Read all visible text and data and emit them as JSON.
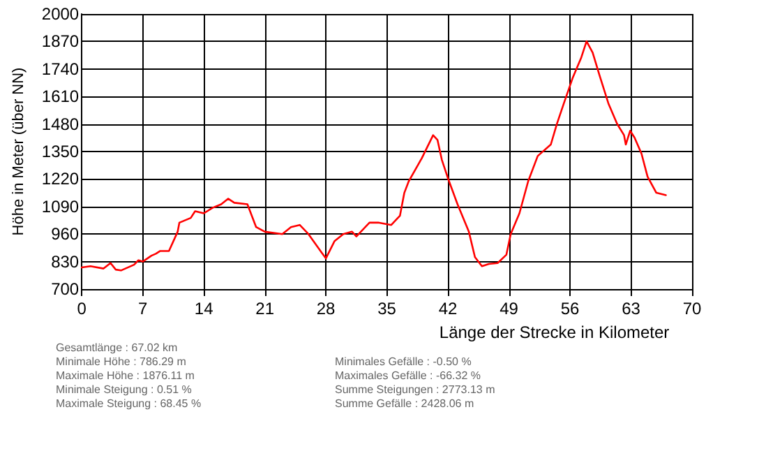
{
  "chart_data": {
    "type": "line",
    "xlabel": "Länge der Strecke in Kilometer",
    "ylabel": "Höhe in Meter (über NN)",
    "xlim": [
      0,
      70
    ],
    "xticks": [
      0,
      7,
      14,
      21,
      28,
      35,
      42,
      49,
      56,
      63,
      70
    ],
    "ylim": [
      700,
      2000
    ],
    "yticks": [
      700,
      830,
      960,
      1090,
      1220,
      1350,
      1480,
      1610,
      1740,
      1870,
      2000
    ],
    "grid": true,
    "marker": "none",
    "line_style": "solid",
    "series": [
      {
        "color": "#ff0000",
        "x": [
          0,
          1,
          2.5,
          3.3,
          3.9,
          4.5,
          6,
          6.5,
          7,
          8,
          8.5,
          9,
          10,
          11,
          11.2,
          12.5,
          13,
          14,
          15,
          16,
          16.8,
          17.5,
          19,
          20,
          21,
          23,
          24,
          25,
          26,
          27.5,
          28,
          29,
          30,
          31,
          31.5,
          33,
          34,
          35.5,
          36.5,
          37,
          37.5,
          39,
          40.3,
          40.8,
          41.3,
          42,
          43.1,
          44.4,
          45.1,
          45.9,
          46.7,
          47.7,
          48.7,
          49.2,
          50.2,
          51.2,
          52.3,
          53.8,
          54.5,
          55.3,
          56.3,
          57.3,
          57.9,
          58.6,
          59.4,
          60.4,
          61.4,
          62.2,
          62.4,
          62.9,
          63.4,
          64.2,
          64.9,
          65.9,
          67
        ],
        "values": [
          802,
          808,
          797,
          823,
          792,
          788,
          815,
          836,
          830,
          858,
          867,
          880,
          880,
          971,
          1014,
          1036,
          1068,
          1058,
          1084,
          1101,
          1127,
          1108,
          1101,
          993,
          971,
          960,
          993,
          1003,
          960,
          873,
          845,
          927,
          960,
          971,
          949,
          1014,
          1014,
          1003,
          1047,
          1155,
          1209,
          1318,
          1427,
          1405,
          1311,
          1224,
          1101,
          971,
          851,
          808,
          819,
          823,
          862,
          960,
          1058,
          1209,
          1329,
          1383,
          1481,
          1578,
          1697,
          1795,
          1871,
          1817,
          1708,
          1578,
          1481,
          1427,
          1383,
          1448,
          1416,
          1340,
          1231,
          1155,
          1144
        ]
      }
    ],
    "annotations": [
      "Gesamtlänge : 67.02 km",
      "Minimale Höhe : 786.29 m",
      "Maximale Höhe : 1876.11 m",
      "Minimale Steigung : 0.51 %",
      "Maximale Steigung : 68.45 %",
      "Minimales Gefälle : -0.50 %",
      "Maximales Gefälle : -66.32 %",
      "Summe Steigungen : 2773.13 m",
      "Summe Gefälle : 2428.06 m"
    ]
  }
}
